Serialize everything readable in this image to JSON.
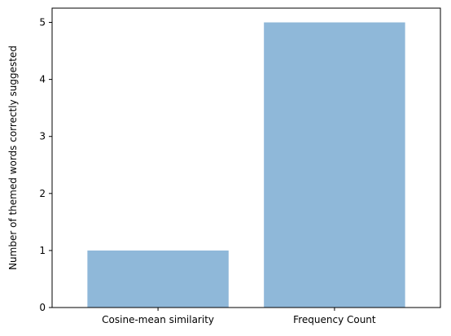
{
  "chart_data": {
    "type": "bar",
    "title": "",
    "xlabel": "",
    "ylabel": "Number of themed words correctly suggested",
    "categories": [
      "Cosine-mean similarity",
      "Frequency Count"
    ],
    "values": [
      1,
      5
    ],
    "ylim": [
      0,
      5.25
    ],
    "yticks": [
      0,
      1,
      2,
      3,
      4,
      5
    ],
    "bar_color": "#8fb8d9",
    "grid": false,
    "legend": "none"
  }
}
